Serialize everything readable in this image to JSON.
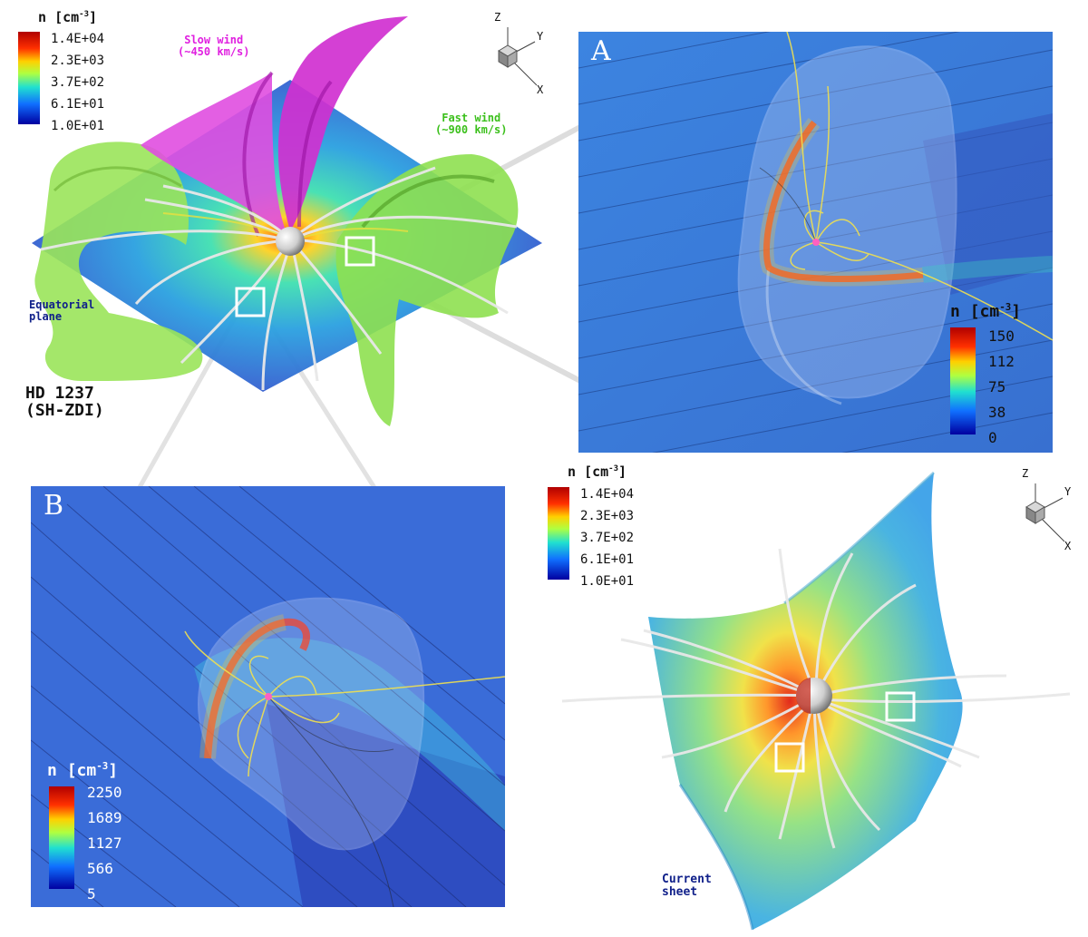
{
  "top_left": {
    "colorbar": {
      "title_prefix": "n",
      "unit_base": "[cm",
      "unit_exp": "-3",
      "unit_close": "]",
      "ticks": [
        "1.4E+04",
        "2.3E+03",
        "3.7E+02",
        "6.1E+01",
        "1.0E+01"
      ]
    },
    "slow_wind": "Slow wind\n(~450 km/s)",
    "fast_wind": "Fast wind\n(~900 km/s)",
    "equatorial": "Equatorial\nplane",
    "star_name": "HD 1237\n(SH-ZDI)",
    "axes": {
      "z": "Z",
      "y": "Y",
      "x": "X"
    }
  },
  "panel_a": {
    "letter": "A",
    "colorbar": {
      "title_prefix": "n",
      "unit_base": "[cm",
      "unit_exp": "-3",
      "unit_close": "]",
      "ticks": [
        "150",
        "112",
        "75",
        "38",
        "0"
      ]
    }
  },
  "panel_b": {
    "letter": "B",
    "colorbar": {
      "title_prefix": "n",
      "unit_base": "[cm",
      "unit_exp": "-3",
      "unit_close": "]",
      "ticks": [
        "2250",
        "1689",
        "1127",
        "566",
        "5"
      ]
    }
  },
  "bottom_right": {
    "colorbar": {
      "title_prefix": "n",
      "unit_base": "[cm",
      "unit_exp": "-3",
      "unit_close": "]",
      "ticks": [
        "1.4E+04",
        "2.3E+03",
        "3.7E+02",
        "6.1E+01",
        "1.0E+01"
      ]
    },
    "current_sheet": "Current\nsheet",
    "axes": {
      "z": "Z",
      "y": "Y",
      "x": "X"
    }
  },
  "colors": {
    "slow_wind": "#e020e0",
    "fast_wind": "#3cc01c",
    "equatorial_label": "#10208a",
    "current_sheet_label": "#10208a",
    "panel_bg": "#3a6fd6"
  }
}
